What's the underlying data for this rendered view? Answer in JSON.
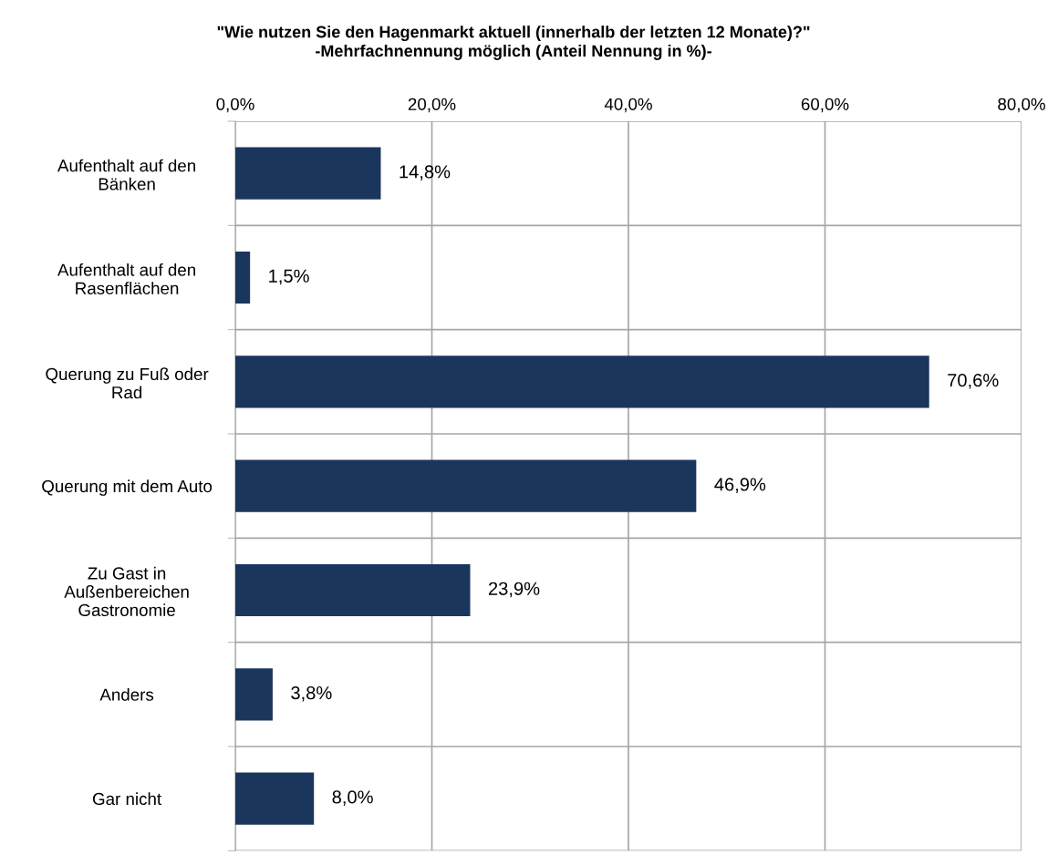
{
  "chart_data": {
    "type": "bar",
    "orientation": "horizontal",
    "title": "\"Wie nutzen Sie den Hagenmarkt aktuell (innerhalb der letzten 12 Monate)?\"\n-Mehrfachnennung möglich (Anteil Nennung in %)-",
    "categories": [
      "Aufenthalt auf den\nBänken",
      "Aufenthalt auf den\nRasenflächen",
      "Querung zu Fuß oder\nRad",
      "Querung mit dem Auto",
      "Zu Gast in\nAußenbereichen\nGastronomie",
      "Anders",
      "Gar nicht"
    ],
    "values": [
      14.8,
      1.5,
      70.6,
      46.9,
      23.9,
      3.8,
      8.0
    ],
    "value_labels": [
      "14,8%",
      "1,5%",
      "70,6%",
      "46,9%",
      "23,9%",
      "3,8%",
      "8,0%"
    ],
    "color": "#1b365d",
    "xlim": [
      0,
      80
    ],
    "xticks": [
      {
        "value": 0,
        "label": "0,0%"
      },
      {
        "value": 20,
        "label": "20,0%"
      },
      {
        "value": 40,
        "label": "40,0%"
      },
      {
        "value": 60,
        "label": "60,0%"
      },
      {
        "value": 80,
        "label": "80,0%"
      }
    ],
    "grid": true
  }
}
